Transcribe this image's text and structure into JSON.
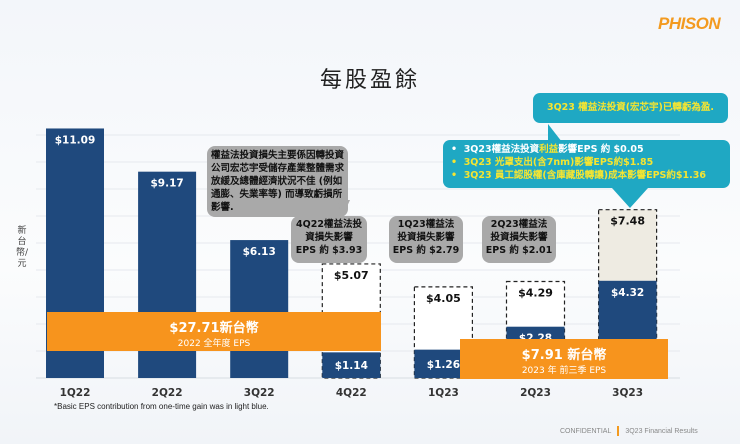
{
  "logo": "PHISON",
  "title": "每股盈餘",
  "chart_data": {
    "type": "bar",
    "ylabel": "新台幣/元",
    "categories": [
      "1Q22",
      "2Q22",
      "3Q22",
      "4Q22",
      "1Q23",
      "2Q23",
      "3Q23"
    ],
    "series": [
      {
        "values": [
          11.09,
          9.17,
          6.13,
          1.14,
          1.26,
          2.28,
          4.32
        ],
        "labels": [
          "$11.09",
          "$9.17",
          "$6.13",
          "$1.14",
          "$1.26",
          "$2.28",
          "$4.32"
        ]
      },
      {
        "values": [
          null,
          null,
          null,
          5.07,
          4.05,
          4.29,
          7.48
        ],
        "labels": [
          "",
          "",
          "",
          "$5.07",
          "$4.05",
          "$4.29",
          "$7.48"
        ]
      }
    ],
    "colors": {
      "bar": "#1f497d",
      "adjusted_box": "#ffffff",
      "adjusted_box_3q23": "#eeebe2"
    },
    "footnote": "*Basic EPS contribution from one-time gain was in light blue."
  },
  "callouts": {
    "main_loss": "權益法投資損失主要係因轉投資公司宏芯宇受儲存產業整體需求放緩及總體經濟狀況不佳 (例如 通膨、失業率等) 而導致虧損所影響.",
    "q4_22": [
      "4Q22權益法投",
      "資損失影響",
      "EPS 約 $3.93"
    ],
    "q1_23": [
      "1Q23權益法",
      "投資損失影響",
      "EPS 約 $2.79"
    ],
    "q2_23": [
      "2Q23權益法",
      "投資損失影響",
      "EPS 約 $2.01"
    ],
    "q3_turn": "3Q23 權益法投資(宏芯宇)已轉虧為盈.",
    "q3_items": [
      {
        "a": "3Q23權益法投資",
        "b": "利益",
        "c": "影響EPS 約 $0.05"
      },
      {
        "text": "3Q23 光罩支出(含7nm)影響EPS約$1.85"
      },
      {
        "text": "3Q23 員工認股權(含庫藏股轉讓)成本影響EPS約$1.36"
      }
    ]
  },
  "banners": {
    "y2022": {
      "value": "$27.71新台幣",
      "label": "2022 全年度 EPS"
    },
    "y2023": {
      "value": "$7.91 新台幣",
      "label": "2023 年 前三季 EPS"
    }
  },
  "footer": {
    "left": "CONFIDENTIAL",
    "right": "3Q23 Financial Results"
  },
  "colors": {
    "orange": "#f7941d",
    "teal": "#1fa8c3",
    "yellow_text": "#f5e531",
    "gray_callout": "#a9a9a9"
  }
}
